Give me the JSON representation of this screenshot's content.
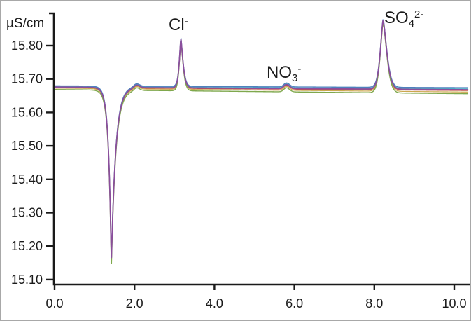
{
  "chart_data": {
    "type": "line",
    "title": "",
    "xlabel": "",
    "ylabel": "µS/cm",
    "grid": false,
    "legend": "none",
    "x_tick_labels": [
      "0.0",
      "2.0",
      "4.0",
      "6.0",
      "8.0",
      "10.0"
    ],
    "x_tick_values": [
      0,
      2,
      4,
      6,
      8,
      10
    ],
    "y_tick_labels": [
      "15.80",
      "15.70",
      "15.60",
      "15.50",
      "15.40",
      "15.30",
      "15.20",
      "15.10"
    ],
    "y_tick_values": [
      15.8,
      15.7,
      15.6,
      15.5,
      15.4,
      15.3,
      15.2,
      15.1
    ],
    "xlim": [
      -0.02,
      10.4
    ],
    "ylim": [
      15.09,
      15.9
    ],
    "t_range": [
      0.02,
      10.35
    ],
    "baseline_uS_cm": {
      "start": 15.676,
      "end": 15.668
    },
    "features": [
      {
        "name": "injection-dip",
        "center_min": 1.42,
        "height": -0.528,
        "min_uS_cm": 15.15,
        "sigma_left": 0.07,
        "sigma_right": 0.11,
        "shape_p": 1.0
      },
      {
        "name": "recovery-bump",
        "center_min": 2.05,
        "height": 0.009,
        "apex_uS_cm": 15.68,
        "sigma_left": 0.09,
        "sigma_right": 0.11,
        "shape_p": 2.0
      },
      {
        "name": "chloride-peak",
        "label": "Cl-",
        "center_min": 3.16,
        "height": 0.148,
        "apex_uS_cm": 15.82,
        "sigma_left": 0.055,
        "sigma_right": 0.075,
        "shape_p": 1.35
      },
      {
        "name": "nitrate-peak",
        "label": "NO3-",
        "center_min": 5.8,
        "height": 0.012,
        "apex_uS_cm": 15.69,
        "sigma_left": 0.09,
        "sigma_right": 0.11,
        "shape_p": 2.0
      },
      {
        "name": "sulfate-peak",
        "label": "SO4 2-",
        "center_min": 8.22,
        "height": 0.206,
        "apex_uS_cm": 15.88,
        "sigma_left": 0.1,
        "sigma_right": 0.13,
        "shape_p": 1.5
      }
    ],
    "series": [
      {
        "name": "run-cyan",
        "color": "#4BACC6",
        "offset": 0.0015,
        "drift": 0.001,
        "scale": 0.995,
        "width": 1.2
      },
      {
        "name": "run-blue",
        "color": "#4F81BD",
        "offset": 0.0035,
        "drift": 0.0025,
        "scale": 0.99,
        "width": 1.4
      },
      {
        "name": "run-red",
        "color": "#C0504D",
        "offset": -0.0015,
        "drift": -0.001,
        "scale": 1.005,
        "width": 1.2
      },
      {
        "name": "run-tan",
        "color": "#CBA84F",
        "offset": -0.0035,
        "drift": -0.0035,
        "scale": 0.985,
        "width": 1.2
      },
      {
        "name": "run-green",
        "color": "#7FA84D",
        "offset": -0.0075,
        "drift": -0.0045,
        "scale": 1.02,
        "width": 1.4
      },
      {
        "name": "run-purple",
        "color": "#8B4E9C",
        "offset": 0.0,
        "drift": 0.0,
        "scale": 1.0,
        "width": 1.7
      }
    ],
    "annotations": [
      {
        "main": "Cl",
        "sub": "",
        "sup": "-"
      },
      {
        "main": "NO",
        "sub": "3",
        "sup": "-"
      },
      {
        "main": "SO",
        "sub": "4",
        "sup": "2-"
      }
    ]
  }
}
